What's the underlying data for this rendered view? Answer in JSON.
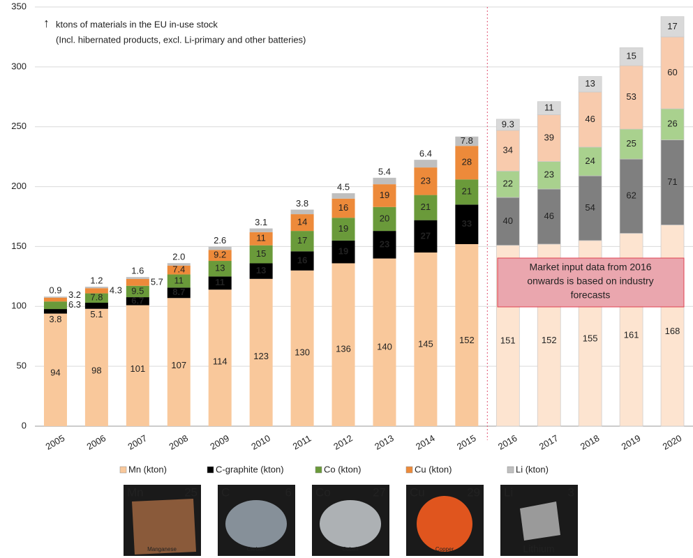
{
  "chart_data": {
    "type": "stacked-bar",
    "annotation": [
      "ktons of materials in the EU in-use stock",
      "(Incl. hibernated products, excl. Li-primary and other batteries)"
    ],
    "forecast_note": [
      "Market input data from 2016",
      "onwards is based on industry",
      "forecasts"
    ],
    "forecast_from": "2016",
    "categories": [
      "2005",
      "2006",
      "2007",
      "2008",
      "2009",
      "2010",
      "2011",
      "2012",
      "2013",
      "2014",
      "2015",
      "2016",
      "2017",
      "2018",
      "2019",
      "2020"
    ],
    "series": [
      {
        "name": "Mn (kton)",
        "color": "#f9c89b",
        "forecast_color": "#fde4d0",
        "label_color": "#333333",
        "forecast_label_color": "#333333",
        "values": [
          94,
          98,
          101,
          107,
          114,
          123,
          130,
          136,
          140,
          145,
          152,
          151,
          152,
          155,
          161,
          168
        ]
      },
      {
        "name": "C-graphite (kton)",
        "color": "#000000",
        "forecast_color": "#7f7f7f",
        "label_color": "#ffffff",
        "forecast_label_color": "#ffffff",
        "values": [
          3.8,
          5.1,
          6.7,
          8.7,
          11,
          13,
          16,
          19,
          23,
          27,
          33,
          40,
          46,
          54,
          62,
          71
        ]
      },
      {
        "name": "Co (kton)",
        "color": "#6a9a3a",
        "forecast_color": "#a9d18e",
        "label_color": "#ffffff",
        "forecast_label_color": "#333333",
        "values": [
          6.3,
          7.8,
          9.5,
          11,
          13,
          15,
          17,
          19,
          20,
          21,
          21,
          22,
          23,
          24,
          25,
          26
        ]
      },
      {
        "name": "Cu (kton)",
        "color": "#ed8a3a",
        "forecast_color": "#f8cbad",
        "label_color": "#ffffff",
        "forecast_label_color": "#333333",
        "values": [
          3.2,
          4.3,
          5.7,
          7.4,
          9.2,
          11,
          14,
          16,
          19,
          23,
          28,
          34,
          39,
          46,
          53,
          60
        ]
      },
      {
        "name": "Li (kton)",
        "color": "#bfbfbf",
        "forecast_color": "#d9d9d9",
        "label_color": "#333333",
        "forecast_label_color": "#333333",
        "values": [
          0.9,
          1.2,
          1.6,
          2.0,
          2.6,
          3.1,
          3.8,
          4.5,
          5.4,
          6.4,
          7.8,
          9.3,
          11,
          13,
          15,
          17
        ],
        "value_labels": [
          "0.9",
          "1.2",
          "1.6",
          "2.0",
          "2.6",
          "3.1",
          "3.8",
          "4.5",
          "5.4",
          "6.4",
          "7.8",
          "9.3",
          "11",
          "13",
          "15",
          "17"
        ]
      }
    ],
    "ylim": [
      0,
      350
    ],
    "yticks": [
      0,
      50,
      100,
      150,
      200,
      250,
      300,
      350
    ],
    "grid": true
  },
  "elements": [
    {
      "symbol": "Mn",
      "number": 25,
      "name": "Manganese",
      "color": "#8a5a3a"
    },
    {
      "symbol": "C",
      "number": 6,
      "name": "Carbon",
      "color": "#9aa6b0"
    },
    {
      "symbol": "Co",
      "number": 27,
      "name": "Cobalt",
      "color": "#c8ccd0"
    },
    {
      "symbol": "Cu",
      "number": 29,
      "name": "Copper",
      "color": "#e0551e"
    },
    {
      "symbol": "Li",
      "number": 3,
      "name": "Lithium",
      "color": "#9a9a9a"
    }
  ]
}
